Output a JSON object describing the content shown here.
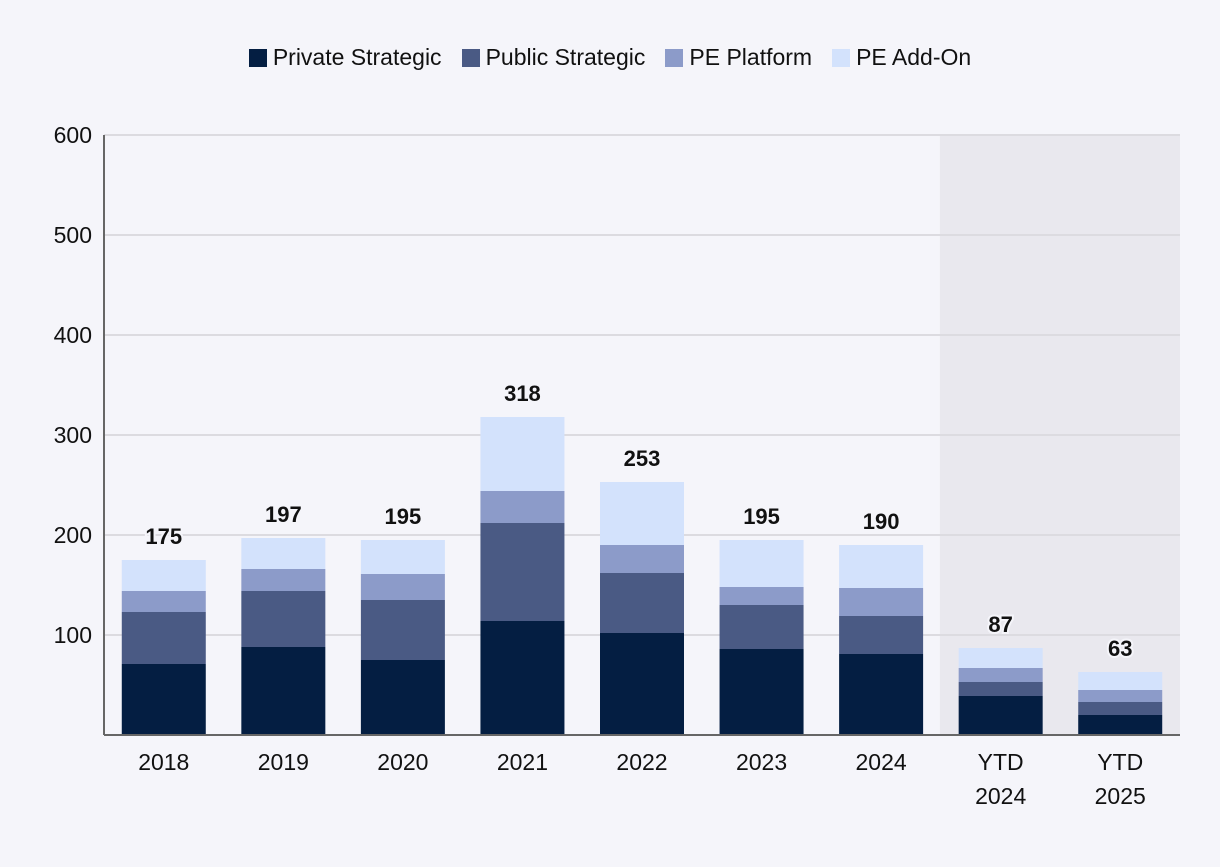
{
  "chart_data": {
    "type": "bar",
    "stacked": true,
    "categories": [
      "2018",
      "2019",
      "2020",
      "2021",
      "2022",
      "2023",
      "2024",
      "YTD 2024",
      "YTD 2025"
    ],
    "series": [
      {
        "name": "Private Strategic",
        "color": "#041e42",
        "values": [
          71,
          88,
          75,
          114,
          102,
          86,
          81,
          39,
          20
        ]
      },
      {
        "name": "Public Strategic",
        "color": "#4a5a84",
        "values": [
          52,
          56,
          60,
          98,
          60,
          44,
          38,
          14,
          13
        ]
      },
      {
        "name": "PE Platform",
        "color": "#8c9bc9",
        "values": [
          21,
          22,
          26,
          32,
          28,
          18,
          28,
          14,
          12
        ]
      },
      {
        "name": "PE Add-On",
        "color": "#d3e2fc",
        "values": [
          31,
          31,
          34,
          74,
          63,
          47,
          43,
          20,
          18
        ]
      }
    ],
    "totals": [
      175,
      197,
      195,
      318,
      253,
      195,
      190,
      87,
      63
    ],
    "ylim": [
      0,
      600
    ],
    "yticks": [
      100,
      200,
      300,
      400,
      500,
      600
    ],
    "grid": true,
    "legend_position": "top",
    "highlighted_categories": [
      "YTD 2024",
      "YTD 2025"
    ],
    "highlight_color": "#e9e8ee",
    "title": "",
    "xlabel": "",
    "ylabel": ""
  }
}
